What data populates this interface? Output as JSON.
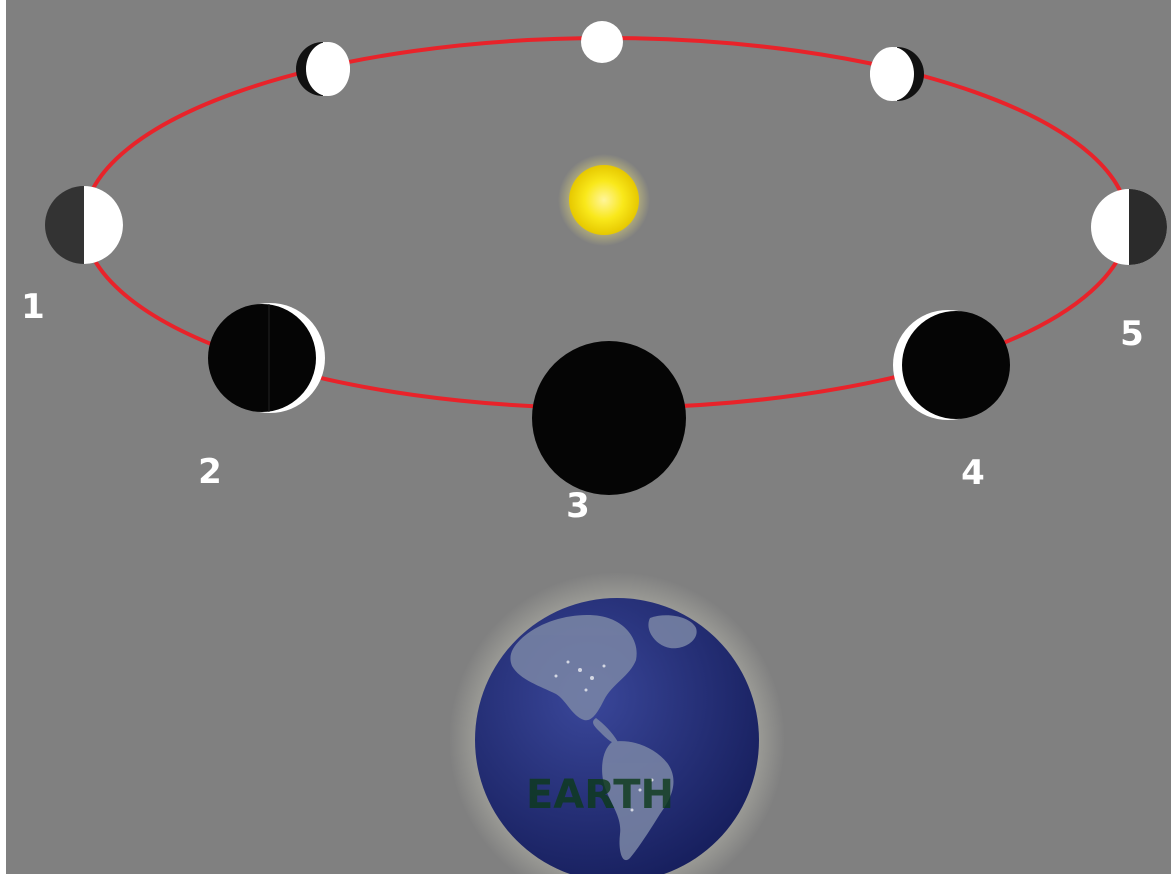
{
  "diagram": {
    "colors": {
      "background": "#808080",
      "orbit": "#e8232a",
      "sun": "#f7e200",
      "moon_light": "#ffffff",
      "moon_dark": "#050505",
      "earth_ocean": "#1f2a78"
    },
    "sun": {
      "icon": "sun-icon"
    },
    "earth": {
      "icon": "earth-globe-icon",
      "label": "EARTH"
    },
    "phase_labels": [
      "1",
      "2",
      "3",
      "4",
      "5"
    ]
  }
}
